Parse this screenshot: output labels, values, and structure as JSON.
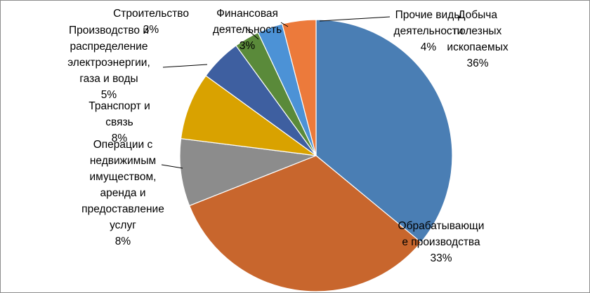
{
  "chart_data": {
    "type": "pie",
    "title": "",
    "legend": "none",
    "slices": [
      {
        "label": "Добыча полезных ископаемых",
        "value": 36,
        "value_label": "36%",
        "color": "#4A7EB4",
        "label_lines": [
          "Добыча",
          "полезных",
          "ископаемых"
        ]
      },
      {
        "label": "Обрабатывающие производства",
        "value": 33,
        "value_label": "33%",
        "color": "#C8662D",
        "label_lines": [
          "Обрабатывающи",
          "е производства"
        ]
      },
      {
        "label": "Операции с недвижимым имуществом, аренда и предоставление услуг",
        "value": 8,
        "value_label": "8%",
        "color": "#8C8C8C",
        "label_lines": [
          "Операции с",
          "недвижимым",
          "имуществом,",
          "аренда и",
          "предоставление",
          "услуг"
        ]
      },
      {
        "label": "Транспорт и связь",
        "value": 8,
        "value_label": "8%",
        "color": "#D9A200",
        "label_lines": [
          "Транспорт и",
          "связь"
        ]
      },
      {
        "label": "Производство и распределение электроэнергии, газа и воды",
        "value": 5,
        "value_label": "5%",
        "color": "#3E5FA0",
        "label_lines": [
          "Производство и",
          "распределение",
          "электроэнергии,",
          "газа и воды"
        ]
      },
      {
        "label": "Строительство",
        "value": 3,
        "value_label": "3%",
        "color": "#5A8A3A",
        "label_lines": [
          "Строительство"
        ]
      },
      {
        "label": "Финансовая деятельность",
        "value": 3,
        "value_label": "3%",
        "color": "#4C92D6",
        "label_lines": [
          "Финансовая",
          "деятельность"
        ]
      },
      {
        "label": "Прочие виды деятельности",
        "value": 4,
        "value_label": "4%",
        "color": "#EC7A3B",
        "label_lines": [
          "Прочие виды",
          "деятельности"
        ]
      }
    ]
  }
}
